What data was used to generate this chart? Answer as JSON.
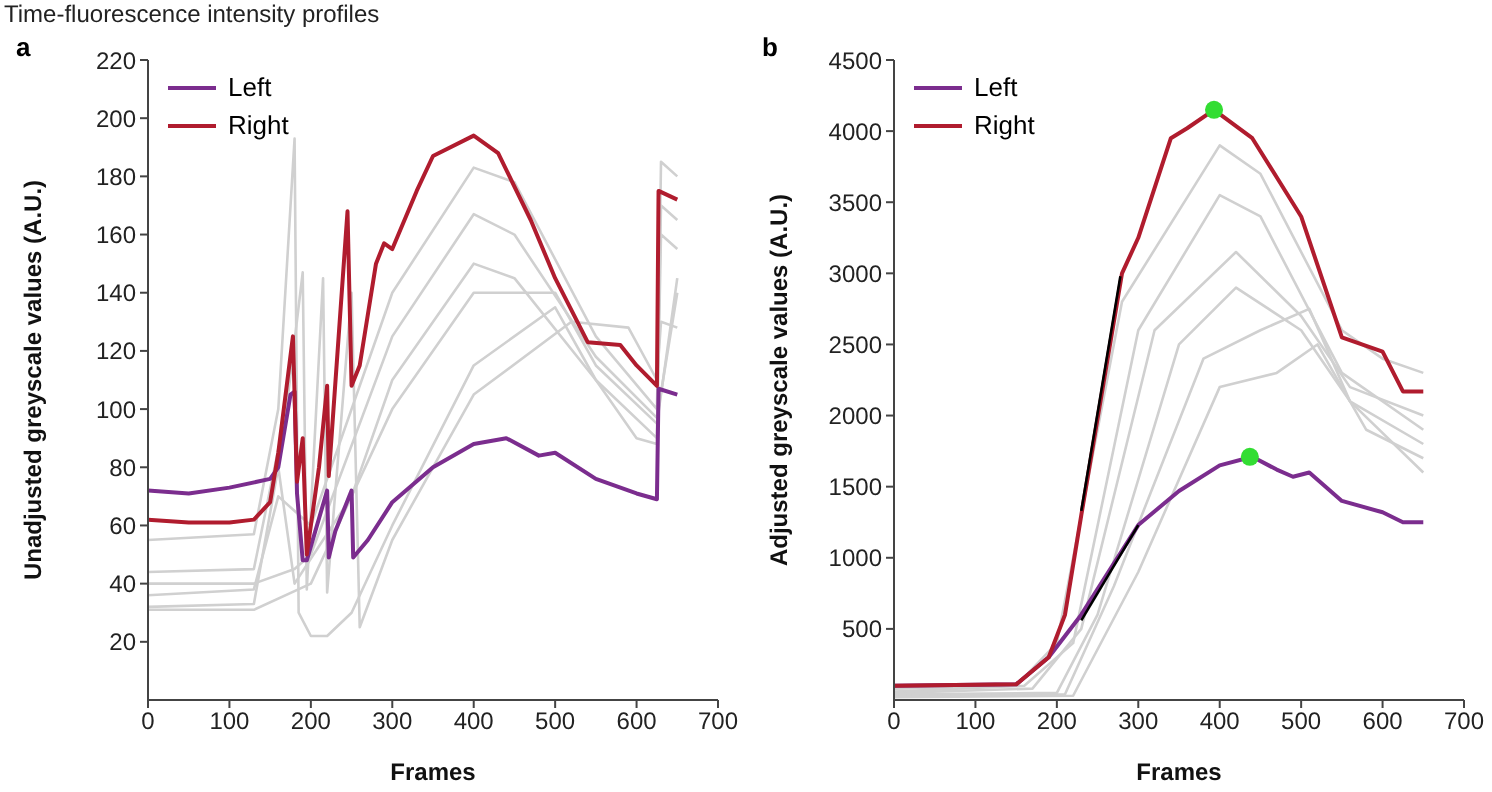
{
  "chart_data": [
    {
      "type": "line",
      "title": "Time-fluorescence intensity profiles",
      "annotations": [
        "a"
      ],
      "xlabel": "Frames",
      "ylabel": "Unadjusted greyscale values (A.U.)",
      "xlim": [
        0,
        700
      ],
      "xticks": [
        0,
        100,
        200,
        300,
        400,
        500,
        600,
        700
      ],
      "ylim": [
        0,
        220
      ],
      "yticks": [
        20,
        40,
        60,
        80,
        100,
        120,
        140,
        160,
        180,
        200,
        220
      ],
      "grid": false,
      "legend": "top left",
      "marker": "none",
      "line_style": "solid",
      "series": [
        {
          "color": "#d0d0d0",
          "x": [
            0,
            130,
            160,
            180,
            185,
            200,
            220,
            250,
            300,
            400,
            500,
            550,
            600,
            625,
            630,
            650
          ],
          "values": [
            55,
            57,
            100,
            193,
            30,
            22,
            22,
            30,
            60,
            115,
            135,
            110,
            90,
            88,
            185,
            180
          ]
        },
        {
          "color": "#d0d0d0",
          "x": [
            0,
            130,
            170,
            190,
            195,
            215,
            220,
            250,
            260,
            300,
            400,
            520,
            590,
            625,
            630,
            650
          ],
          "values": [
            44,
            45,
            100,
            147,
            38,
            145,
            37,
            140,
            25,
            55,
            105,
            130,
            128,
            110,
            130,
            128
          ]
        },
        {
          "color": "#d0d0d0",
          "x": [
            0,
            130,
            160,
            180,
            250,
            300,
            400,
            450,
            550,
            625,
            630,
            650
          ],
          "values": [
            32,
            33,
            80,
            40,
            70,
            110,
            150,
            145,
            110,
            90,
            160,
            155
          ]
        },
        {
          "color": "#d0d0d0",
          "x": [
            0,
            130,
            160,
            200,
            300,
            400,
            450,
            550,
            625,
            630,
            650
          ],
          "values": [
            36,
            38,
            70,
            60,
            140,
            183,
            178,
            125,
            100,
            170,
            165
          ]
        },
        {
          "color": "#d0d0d0",
          "x": [
            0,
            130,
            180,
            200,
            300,
            400,
            450,
            550,
            625,
            650
          ],
          "values": [
            40,
            40,
            45,
            50,
            125,
            167,
            160,
            118,
            97,
            140
          ]
        },
        {
          "color": "#d0d0d0",
          "x": [
            0,
            130,
            200,
            300,
            400,
            500,
            550,
            625,
            650
          ],
          "values": [
            31,
            31,
            40,
            100,
            140,
            140,
            115,
            95,
            145
          ]
        },
        {
          "name": "Left",
          "color": "#7b2d8e",
          "x": [
            0,
            50,
            100,
            150,
            160,
            175,
            180,
            183,
            190,
            195,
            220,
            222,
            230,
            250,
            252,
            270,
            300,
            350,
            400,
            440,
            480,
            500,
            550,
            600,
            625,
            627,
            650
          ],
          "values": [
            72,
            71,
            73,
            76,
            80,
            105,
            106,
            71,
            48,
            48,
            72,
            49,
            58,
            72,
            49,
            55,
            68,
            80,
            88,
            90,
            84,
            85,
            76,
            71,
            69,
            107,
            105
          ]
        },
        {
          "name": "Right",
          "color": "#b01c2e",
          "x": [
            0,
            50,
            100,
            130,
            150,
            160,
            178,
            183,
            190,
            195,
            210,
            220,
            222,
            245,
            250,
            260,
            280,
            290,
            300,
            330,
            350,
            400,
            430,
            470,
            500,
            540,
            580,
            600,
            625,
            627,
            650
          ],
          "values": [
            62,
            61,
            61,
            62,
            68,
            85,
            125,
            75,
            90,
            50,
            80,
            108,
            77,
            168,
            108,
            115,
            150,
            157,
            155,
            175,
            187,
            194,
            188,
            165,
            145,
            123,
            122,
            115,
            108,
            175,
            172
          ]
        }
      ]
    },
    {
      "type": "line",
      "annotations": [
        "b"
      ],
      "xlabel": "Frames",
      "ylabel": "Adjusted greyscale values (A.U.)",
      "xlim": [
        0,
        700
      ],
      "xticks": [
        0,
        100,
        200,
        300,
        400,
        500,
        600,
        700
      ],
      "ylim": [
        0,
        4500
      ],
      "yticks": [
        500,
        1000,
        1500,
        2000,
        2500,
        3000,
        3500,
        4000,
        4500
      ],
      "grid": false,
      "legend": "top left",
      "marker": "none",
      "line_style": "solid",
      "series": [
        {
          "color": "#d0d0d0",
          "x": [
            0,
            150,
            200,
            280,
            400,
            450,
            550,
            600,
            650
          ],
          "values": [
            80,
            100,
            400,
            2800,
            3900,
            3700,
            2600,
            2400,
            2300
          ]
        },
        {
          "color": "#d0d0d0",
          "x": [
            0,
            160,
            220,
            300,
            400,
            450,
            550,
            650
          ],
          "values": [
            60,
            100,
            400,
            2600,
            3550,
            3400,
            2300,
            1900
          ]
        },
        {
          "color": "#d0d0d0",
          "x": [
            0,
            170,
            230,
            320,
            420,
            500,
            560,
            650
          ],
          "values": [
            50,
            80,
            500,
            2600,
            3150,
            2700,
            2200,
            2000
          ]
        },
        {
          "color": "#d0d0d0",
          "x": [
            0,
            200,
            250,
            350,
            420,
            500,
            560,
            650
          ],
          "values": [
            40,
            50,
            600,
            2500,
            2900,
            2600,
            2100,
            1800
          ]
        },
        {
          "color": "#d0d0d0",
          "x": [
            0,
            210,
            270,
            380,
            450,
            510,
            560,
            650
          ],
          "values": [
            30,
            40,
            800,
            2400,
            2600,
            2750,
            2100,
            1600
          ]
        },
        {
          "color": "#d0d0d0",
          "x": [
            0,
            220,
            300,
            400,
            470,
            520,
            580,
            650
          ],
          "values": [
            20,
            30,
            900,
            2200,
            2300,
            2500,
            1900,
            1700
          ]
        },
        {
          "name": "Left",
          "color": "#7b2d8e",
          "x": [
            0,
            150,
            190,
            230,
            300,
            350,
            400,
            440,
            470,
            490,
            510,
            550,
            600,
            625,
            650
          ],
          "values": [
            100,
            110,
            300,
            600,
            1230,
            1470,
            1650,
            1710,
            1620,
            1570,
            1600,
            1400,
            1320,
            1250,
            1250
          ]
        },
        {
          "name": "Right",
          "color": "#b01c2e",
          "x": [
            0,
            150,
            190,
            210,
            230,
            280,
            300,
            340,
            360,
            393,
            440,
            500,
            550,
            600,
            625,
            650
          ],
          "values": [
            100,
            110,
            300,
            600,
            1300,
            3000,
            3250,
            3950,
            4020,
            4150,
            3950,
            3400,
            2550,
            2450,
            2170,
            2170
          ]
        },
        {
          "color": "#000000",
          "x": [
            230,
            300
          ],
          "values": [
            560,
            1230
          ]
        },
        {
          "color": "#000000",
          "x": [
            230,
            278
          ],
          "values": [
            1330,
            2980
          ]
        },
        {
          "type": "scatter",
          "color": "#33dd33",
          "marker": "circle",
          "x": [
            393,
            437
          ],
          "values": [
            4150,
            1710
          ]
        }
      ]
    }
  ]
}
